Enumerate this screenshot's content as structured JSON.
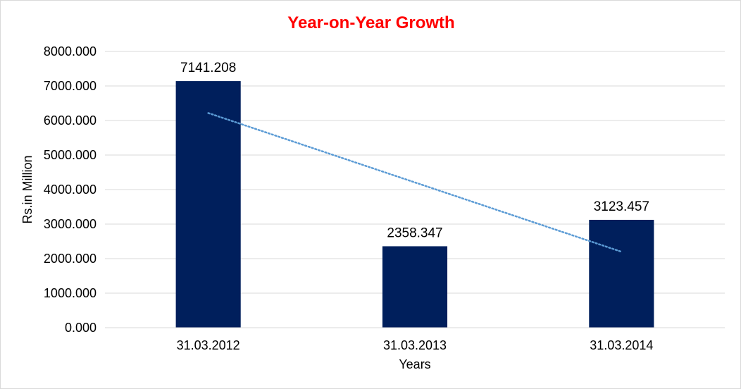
{
  "chart_data": {
    "type": "bar",
    "title": "Year-on-Year Growth",
    "xlabel": "Years",
    "ylabel": "Rs.in Million",
    "categories": [
      "31.03.2012",
      "31.03.2013",
      "31.03.2014"
    ],
    "values": [
      7141.208,
      2358.347,
      3123.457
    ],
    "data_labels": [
      "7141.208",
      "2358.347",
      "3123.457"
    ],
    "ylim": [
      0,
      8000
    ],
    "yticks": [
      0,
      1000,
      2000,
      3000,
      4000,
      5000,
      6000,
      7000,
      8000
    ],
    "ytick_labels": [
      "0.000",
      "1000.000",
      "2000.000",
      "3000.000",
      "4000.000",
      "5000.000",
      "6000.000",
      "7000.000",
      "8000.000"
    ],
    "grid": true,
    "legend": "none",
    "trendline": {
      "type": "linear",
      "style": "dotted"
    },
    "colors": {
      "bar": "#001f5c",
      "title": "#ff0000",
      "trendline": "#5b9bd5",
      "grid": "#d9d9d9"
    }
  }
}
